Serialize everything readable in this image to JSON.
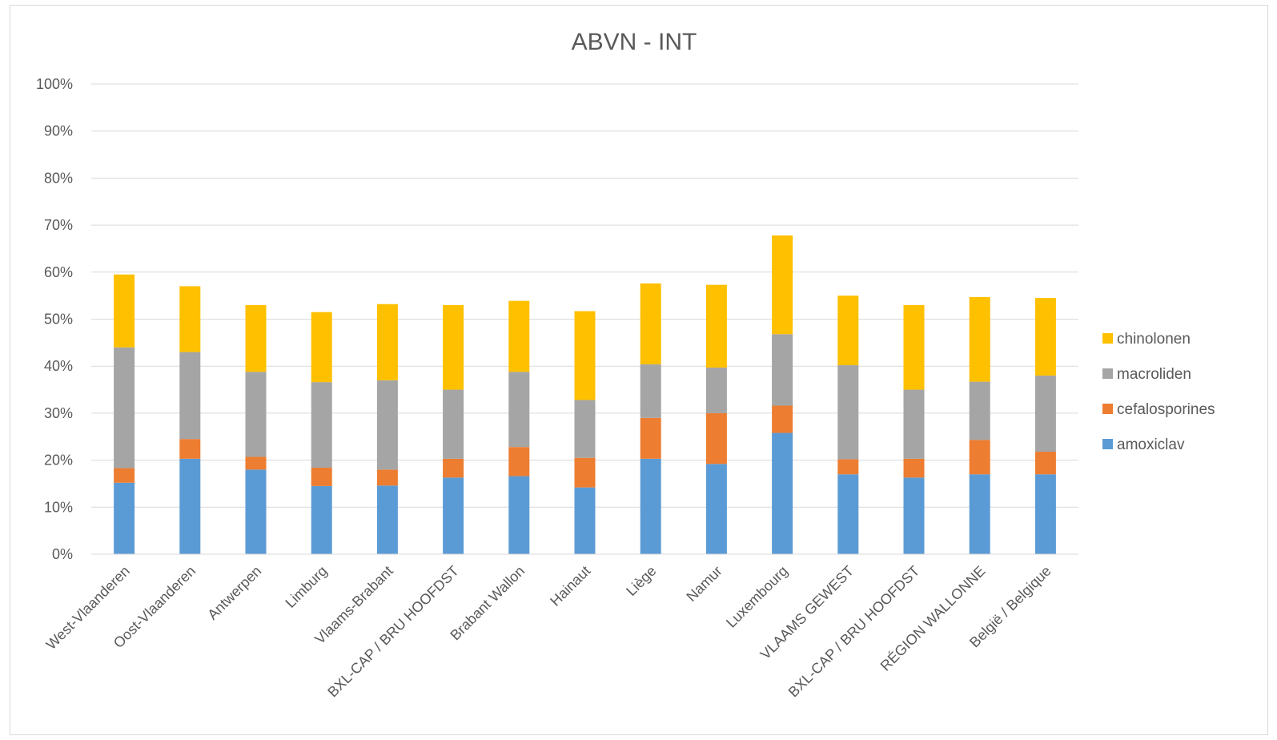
{
  "chart_data": {
    "type": "bar",
    "stacked": true,
    "title": "ABVN - INT",
    "xlabel": "",
    "ylabel": "",
    "ylim": [
      0,
      100
    ],
    "y_ticks": [
      "0%",
      "10%",
      "20%",
      "30%",
      "40%",
      "50%",
      "60%",
      "70%",
      "80%",
      "90%",
      "100%"
    ],
    "grid": true,
    "legend_position": "right",
    "categories": [
      "West-Vlaanderen",
      "Oost-Vlaanderen",
      "Antwerpen",
      "Limburg",
      "Vlaams-Brabant",
      "BXL-CAP / BRU HOOFDST",
      "Brabant Wallon",
      "Hainaut",
      "Liège",
      "Namur",
      "Luxembourg",
      "VLAAMS GEWEST",
      "BXL-CAP / BRU HOOFDST",
      "RÉGION WALLONNE",
      "België / Belgique"
    ],
    "series": [
      {
        "name": "amoxiclav",
        "color": "#5b9bd5",
        "values": [
          15.2,
          20.3,
          18.0,
          14.5,
          14.6,
          16.3,
          16.6,
          14.2,
          20.3,
          19.2,
          25.8,
          17.0,
          16.3,
          17.0,
          17.0
        ]
      },
      {
        "name": "cefalosporines",
        "color": "#ed7d31",
        "values": [
          3.1,
          4.2,
          2.7,
          3.9,
          3.4,
          4.0,
          6.2,
          6.3,
          8.7,
          10.8,
          5.8,
          3.2,
          4.0,
          7.3,
          4.8
        ]
      },
      {
        "name": "macroliden",
        "color": "#a5a5a5",
        "values": [
          25.7,
          18.5,
          18.1,
          18.2,
          19.0,
          14.7,
          16.0,
          12.3,
          11.4,
          9.7,
          15.2,
          20.0,
          14.7,
          12.4,
          16.2
        ]
      },
      {
        "name": "chinolonen",
        "color": "#ffc000",
        "values": [
          15.5,
          14.0,
          14.2,
          14.9,
          16.2,
          18.0,
          15.1,
          18.9,
          17.2,
          17.6,
          21.0,
          14.8,
          18.0,
          18.0,
          16.5
        ]
      }
    ],
    "legend_order": [
      "chinolonen",
      "macroliden",
      "cefalosporines",
      "amoxiclav"
    ],
    "gridline_color": "#d9d9d9"
  }
}
